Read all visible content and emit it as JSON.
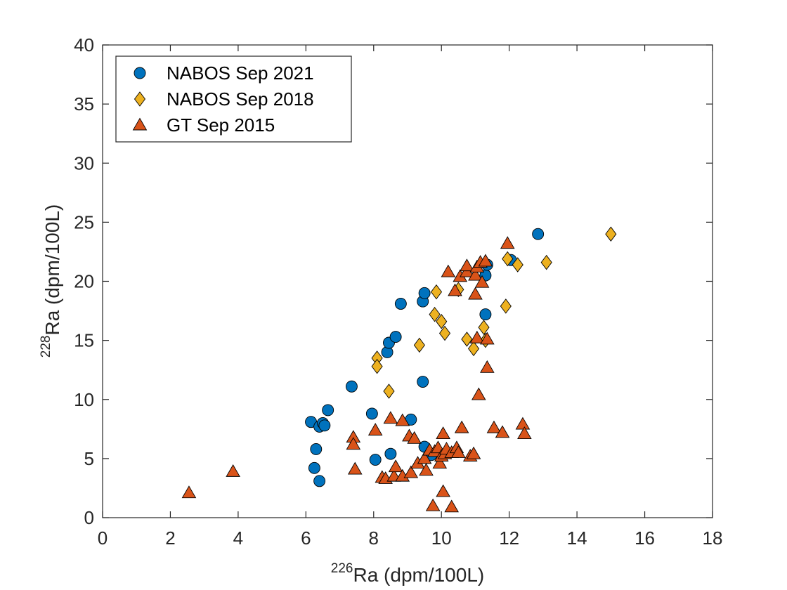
{
  "chart_data": {
    "type": "scatter",
    "title": "",
    "xlabel": {
      "isotope_mass": "226",
      "text": "Ra (dpm/100L)"
    },
    "ylabel": {
      "isotope_mass": "228",
      "text": "Ra (dpm/100L)"
    },
    "xlim": [
      0,
      18
    ],
    "ylim": [
      0,
      40
    ],
    "xticks": [
      0,
      2,
      4,
      6,
      8,
      10,
      12,
      14,
      16,
      18
    ],
    "yticks": [
      0,
      5,
      10,
      15,
      20,
      25,
      30,
      35,
      40
    ],
    "grid": false,
    "legend_position": "top-left",
    "series": [
      {
        "name": "NABOS Sep 2021",
        "marker": "circle",
        "color": "#0072BD",
        "points": [
          [
            6.15,
            8.1
          ],
          [
            6.3,
            5.8
          ],
          [
            6.25,
            4.2
          ],
          [
            6.4,
            7.7
          ],
          [
            6.4,
            3.1
          ],
          [
            6.5,
            8.0
          ],
          [
            6.55,
            7.8
          ],
          [
            6.65,
            9.1
          ],
          [
            7.35,
            11.1
          ],
          [
            7.95,
            8.8
          ],
          [
            8.05,
            4.9
          ],
          [
            8.4,
            14.0
          ],
          [
            8.45,
            14.8
          ],
          [
            8.5,
            5.4
          ],
          [
            8.65,
            15.3
          ],
          [
            8.8,
            18.1
          ],
          [
            9.1,
            8.3
          ],
          [
            9.45,
            18.3
          ],
          [
            9.5,
            19.0
          ],
          [
            9.45,
            11.5
          ],
          [
            9.5,
            6.0
          ],
          [
            9.7,
            5.3
          ],
          [
            11.3,
            20.5
          ],
          [
            11.3,
            17.2
          ],
          [
            11.35,
            21.4
          ],
          [
            12.05,
            21.8
          ],
          [
            12.85,
            24.0
          ]
        ]
      },
      {
        "name": "NABOS Sep 2018",
        "marker": "diamond",
        "color": "#EDB120",
        "points": [
          [
            8.1,
            13.5
          ],
          [
            8.1,
            12.8
          ],
          [
            8.45,
            10.7
          ],
          [
            9.35,
            14.6
          ],
          [
            9.8,
            17.2
          ],
          [
            9.85,
            19.1
          ],
          [
            10.0,
            16.6
          ],
          [
            10.1,
            15.6
          ],
          [
            10.5,
            19.3
          ],
          [
            10.75,
            15.1
          ],
          [
            10.95,
            14.3
          ],
          [
            11.25,
            16.1
          ],
          [
            11.3,
            15.0
          ],
          [
            11.95,
            21.9
          ],
          [
            11.9,
            17.9
          ],
          [
            12.25,
            21.4
          ],
          [
            13.1,
            21.6
          ],
          [
            15.0,
            24.0
          ]
        ]
      },
      {
        "name": "GT Sep 2015",
        "marker": "triangle",
        "color": "#D95319",
        "points": [
          [
            2.55,
            2.1
          ],
          [
            3.85,
            3.9
          ],
          [
            7.4,
            6.8
          ],
          [
            7.4,
            6.2
          ],
          [
            7.45,
            4.1
          ],
          [
            8.05,
            7.4
          ],
          [
            8.25,
            3.4
          ],
          [
            8.35,
            3.3
          ],
          [
            8.5,
            8.4
          ],
          [
            8.6,
            3.5
          ],
          [
            8.65,
            4.3
          ],
          [
            8.85,
            3.5
          ],
          [
            8.85,
            8.2
          ],
          [
            9.05,
            6.9
          ],
          [
            9.1,
            3.8
          ],
          [
            9.2,
            6.7
          ],
          [
            9.3,
            4.6
          ],
          [
            9.5,
            5.0
          ],
          [
            9.55,
            4.0
          ],
          [
            9.65,
            5.7
          ],
          [
            9.75,
            1.0
          ],
          [
            9.8,
            5.6
          ],
          [
            9.9,
            5.9
          ],
          [
            9.95,
            4.6
          ],
          [
            10.0,
            5.2
          ],
          [
            10.05,
            2.2
          ],
          [
            10.05,
            7.1
          ],
          [
            10.1,
            5.4
          ],
          [
            10.15,
            5.8
          ],
          [
            10.2,
            20.8
          ],
          [
            10.3,
            5.5
          ],
          [
            10.3,
            0.9
          ],
          [
            10.4,
            19.2
          ],
          [
            10.45,
            5.9
          ],
          [
            10.5,
            5.5
          ],
          [
            10.55,
            20.4
          ],
          [
            10.6,
            7.6
          ],
          [
            10.75,
            20.8
          ],
          [
            10.75,
            21.3
          ],
          [
            10.85,
            5.2
          ],
          [
            10.95,
            5.4
          ],
          [
            11.0,
            18.9
          ],
          [
            11.0,
            20.5
          ],
          [
            11.05,
            21.2
          ],
          [
            11.05,
            15.2
          ],
          [
            11.1,
            10.4
          ],
          [
            11.15,
            21.6
          ],
          [
            11.2,
            19.9
          ],
          [
            11.3,
            21.7
          ],
          [
            11.35,
            15.1
          ],
          [
            11.35,
            12.7
          ],
          [
            11.55,
            7.6
          ],
          [
            11.8,
            7.2
          ],
          [
            11.95,
            23.2
          ],
          [
            12.4,
            7.9
          ],
          [
            12.45,
            7.1
          ]
        ]
      }
    ]
  }
}
